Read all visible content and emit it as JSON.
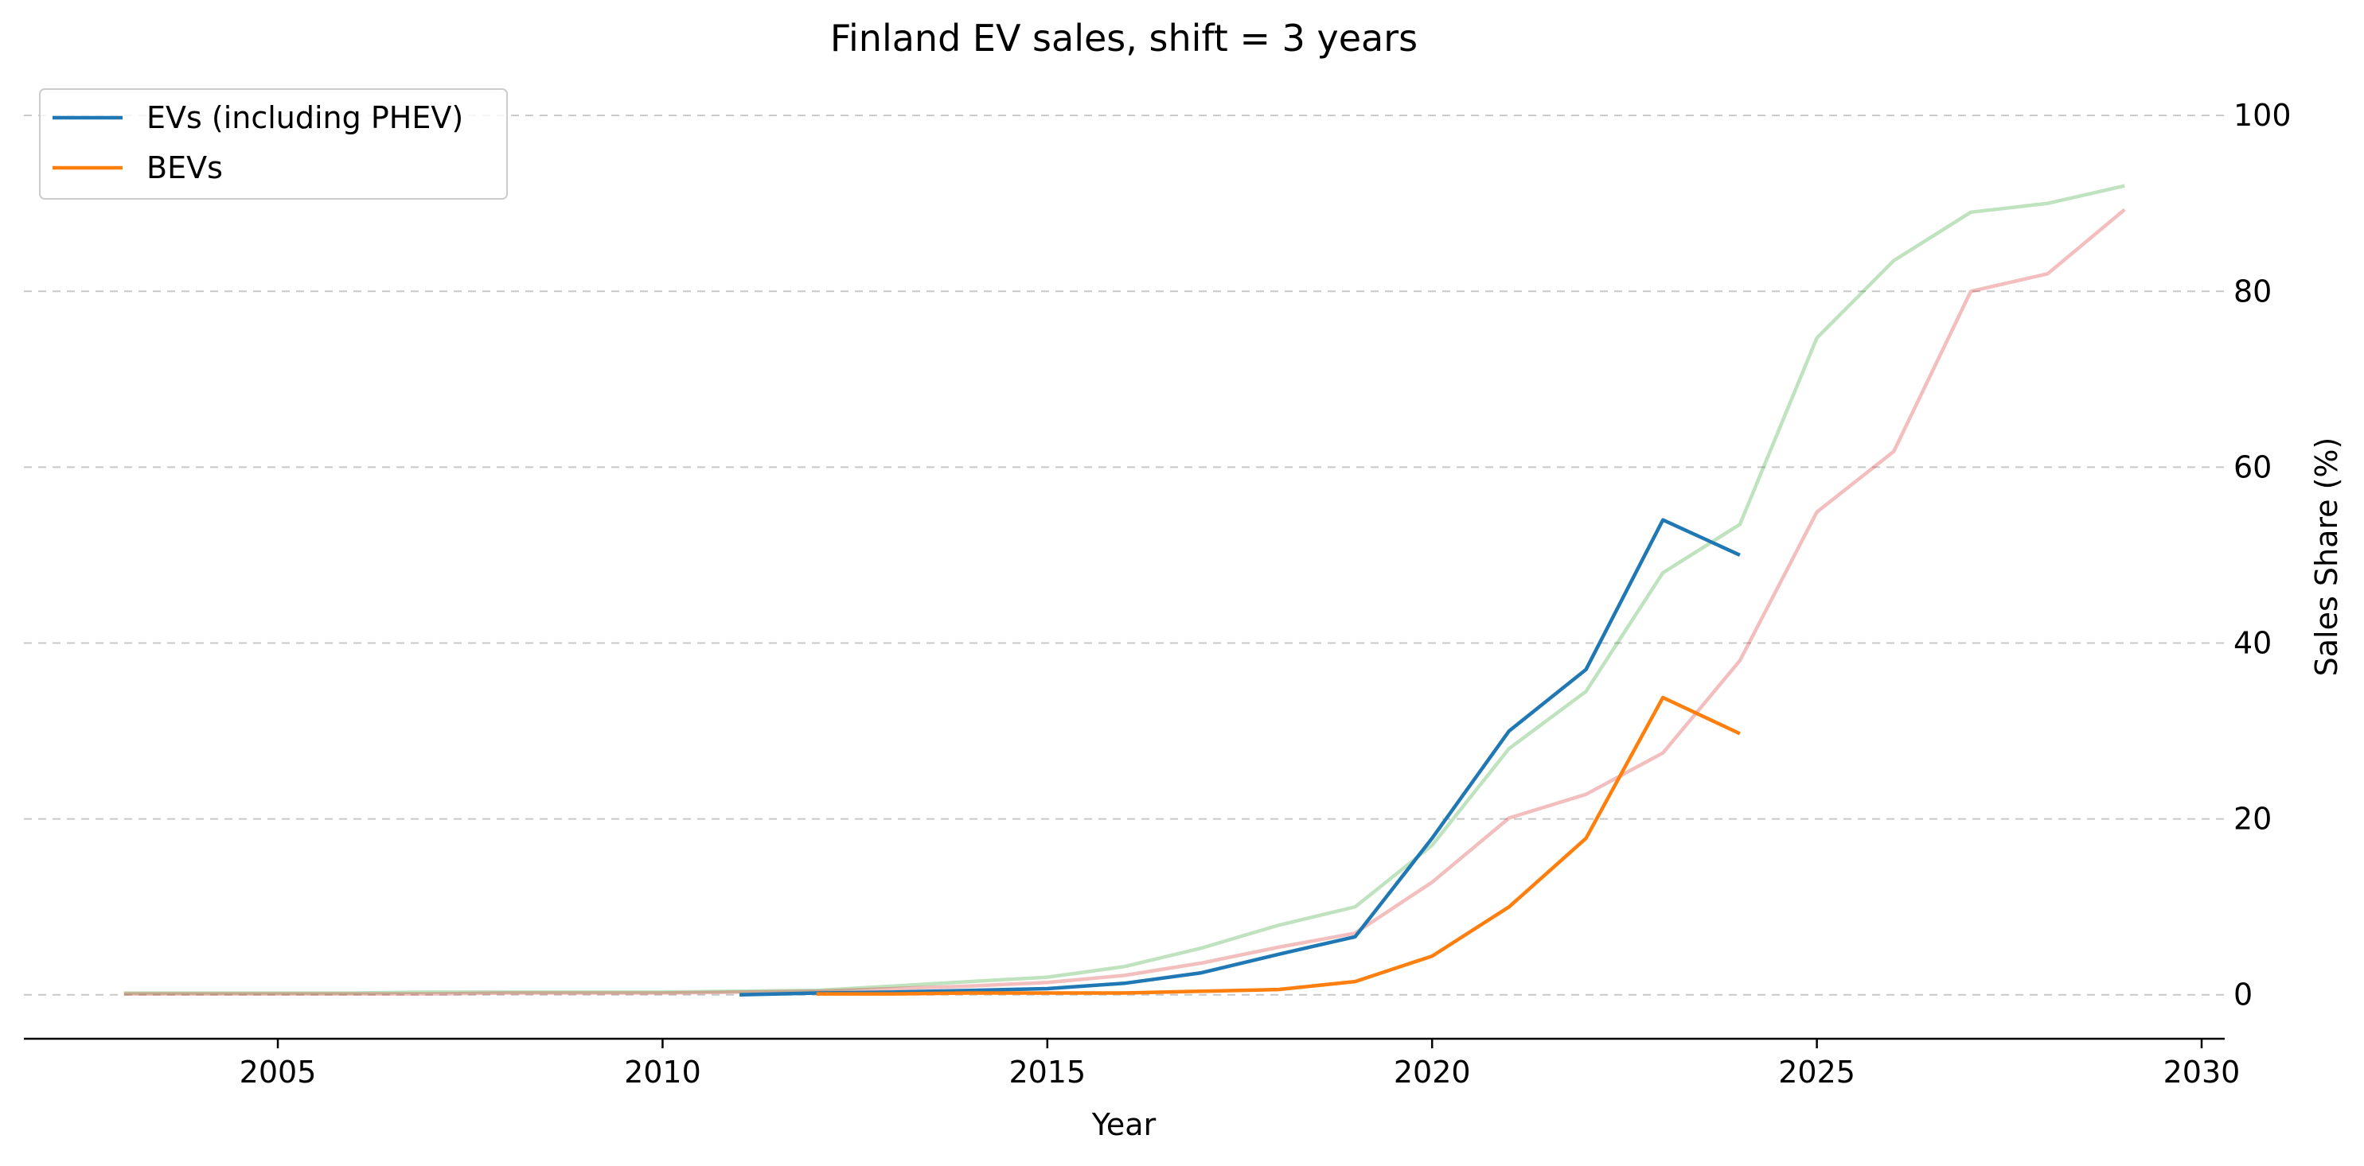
{
  "chart_data": {
    "type": "line",
    "title": "Finland EV sales, shift = 3 years",
    "xlabel": "Year",
    "ylabel": "Sales Share (%)",
    "xlim": [
      2001.7,
      2030.3
    ],
    "ylim": [
      -5,
      103
    ],
    "x_ticks": [
      2005,
      2010,
      2015,
      2020,
      2025,
      2030
    ],
    "y_ticks": [
      0,
      20,
      40,
      60,
      80,
      100
    ],
    "y_axis_position": "right",
    "grid": "horizontal dashed",
    "legend_position": "top-left",
    "series": [
      {
        "name": "EVs (including PHEV)",
        "color": "#1f77b4",
        "x": [
          2011,
          2012,
          2013,
          2014,
          2015,
          2016,
          2017,
          2018,
          2019,
          2020,
          2021,
          2022,
          2023,
          2024
        ],
        "y": [
          0.0,
          0.2,
          0.3,
          0.5,
          0.7,
          1.3,
          2.5,
          4.6,
          6.6,
          17.8,
          30.0,
          37.0,
          54.0,
          50.0
        ]
      },
      {
        "name": "BEVs",
        "color": "#ff7f0e",
        "x": [
          2012,
          2013,
          2014,
          2015,
          2016,
          2017,
          2018,
          2019,
          2020,
          2021,
          2022,
          2023,
          2024
        ],
        "y": [
          0.1,
          0.1,
          0.2,
          0.2,
          0.2,
          0.4,
          0.6,
          1.5,
          4.4,
          10.0,
          17.8,
          33.8,
          29.7
        ]
      },
      {
        "color": "#2ca02c",
        "opacity": 0.3,
        "x": [
          2003,
          2004,
          2005,
          2006,
          2007,
          2008,
          2009,
          2010,
          2011,
          2012,
          2013,
          2014,
          2015,
          2016,
          2017,
          2018,
          2019,
          2020,
          2021,
          2022,
          2023,
          2024,
          2025,
          2026,
          2027,
          2028,
          2029
        ],
        "y": [
          0.2,
          0.2,
          0.2,
          0.2,
          0.3,
          0.3,
          0.3,
          0.3,
          0.4,
          0.5,
          1.0,
          1.5,
          2.0,
          3.2,
          5.3,
          7.9,
          10.0,
          17.0,
          28.0,
          34.5,
          48.0,
          53.5,
          74.7,
          83.5,
          89.0,
          90.0,
          92.0
        ]
      },
      {
        "color": "#d62728",
        "opacity": 0.3,
        "x": [
          2003,
          2004,
          2005,
          2006,
          2007,
          2008,
          2009,
          2010,
          2011,
          2012,
          2013,
          2014,
          2015,
          2016,
          2017,
          2018,
          2019,
          2020,
          2021,
          2022,
          2023,
          2024,
          2025,
          2026,
          2027,
          2028,
          2029
        ],
        "y": [
          0.1,
          0.1,
          0.1,
          0.1,
          0.1,
          0.2,
          0.2,
          0.2,
          0.3,
          0.4,
          0.7,
          1.0,
          1.4,
          2.2,
          3.6,
          5.4,
          7.0,
          12.8,
          20.1,
          22.8,
          27.5,
          38.0,
          54.9,
          61.8,
          80.0,
          82.0,
          89.3
        ]
      }
    ]
  }
}
